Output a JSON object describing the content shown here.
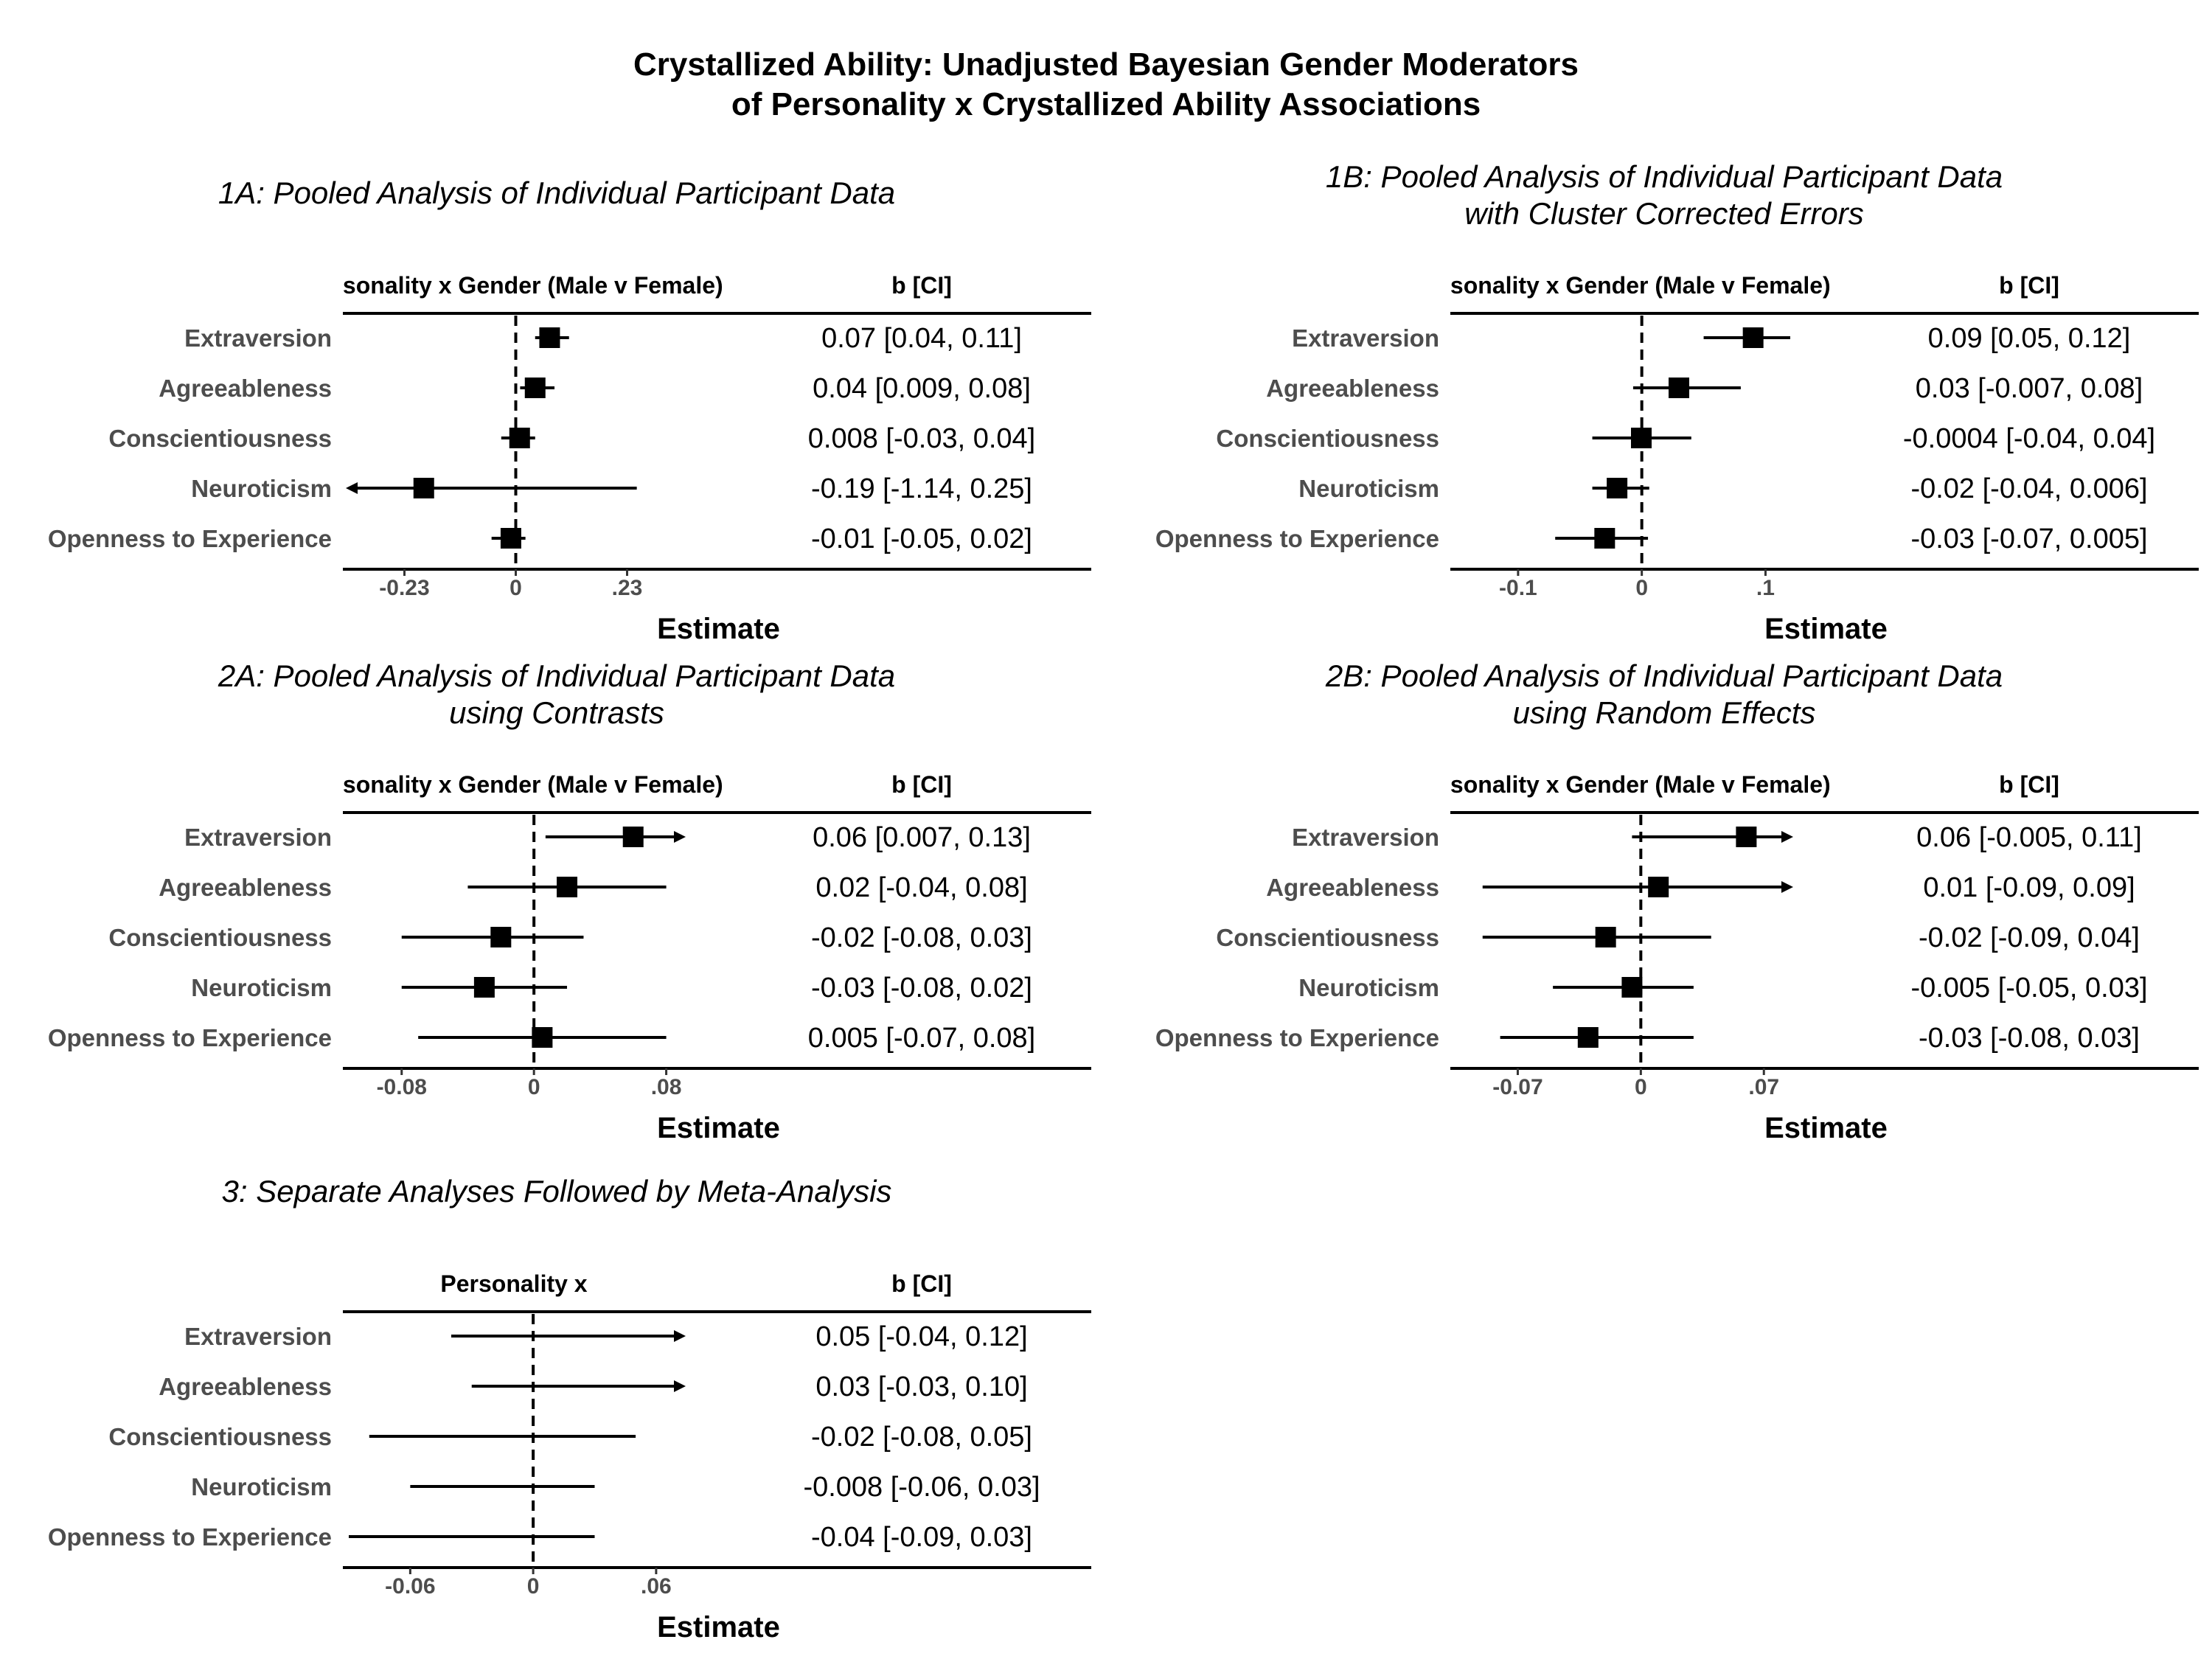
{
  "title_line1": "Crystallized Ability: Unadjusted Bayesian Gender Moderators",
  "title_line2": "of Personality x Crystallized Ability Associations",
  "colors": {
    "marker": "#000000",
    "row_label": "#4d4d4d",
    "line": "#000000"
  },
  "chart_data": [
    {
      "type": "forest",
      "title": [
        "1A: Pooled Analysis of Individual Participant Data"
      ],
      "column_header": "Personality x Gender (Male v Female)",
      "ci_header": "b [CI]",
      "xlabel": "Estimate",
      "xlim": [
        -0.345,
        0.345
      ],
      "ticks": [
        {
          "v": -0.23,
          "label": "-0.23"
        },
        {
          "v": 0,
          "label": "0"
        },
        {
          "v": 0.23,
          "label": ".23"
        }
      ],
      "rows": [
        {
          "label": "Extraversion",
          "estimate": 0.07,
          "lower": 0.04,
          "upper": 0.11,
          "ci_text": "0.07 [0.04, 0.11]",
          "marker": true
        },
        {
          "label": "Agreeableness",
          "estimate": 0.04,
          "lower": 0.009,
          "upper": 0.08,
          "ci_text": "0.04 [0.009, 0.08]",
          "marker": true
        },
        {
          "label": "Conscientiousness",
          "estimate": 0.008,
          "lower": -0.03,
          "upper": 0.04,
          "ci_text": "0.008 [-0.03, 0.04]",
          "marker": true
        },
        {
          "label": "Neuroticism",
          "estimate": -0.19,
          "lower": -1.14,
          "upper": 0.25,
          "ci_text": "-0.19 [-1.14, 0.25]",
          "marker": true
        },
        {
          "label": "Openness to Experience",
          "estimate": -0.01,
          "lower": -0.05,
          "upper": 0.02,
          "ci_text": "-0.01 [-0.05, 0.02]",
          "marker": true
        }
      ]
    },
    {
      "type": "forest",
      "title": [
        "1B: Pooled Analysis of Individual Participant Data",
        "with Cluster Corrected Errors"
      ],
      "column_header": "Personality x Gender (Male v Female)",
      "ci_header": "b [CI]",
      "xlabel": "Estimate",
      "xlim": [
        -0.15,
        0.12
      ],
      "ticks": [
        {
          "v": -0.1,
          "label": "-0.1"
        },
        {
          "v": 0,
          "label": "0"
        },
        {
          "v": 0.1,
          "label": ".1"
        }
      ],
      "rows": [
        {
          "label": "Extraversion",
          "estimate": 0.09,
          "lower": 0.05,
          "upper": 0.12,
          "ci_text": "0.09 [0.05, 0.12]",
          "marker": true
        },
        {
          "label": "Agreeableness",
          "estimate": 0.03,
          "lower": -0.007,
          "upper": 0.08,
          "ci_text": "0.03 [-0.007, 0.08]",
          "marker": true
        },
        {
          "label": "Conscientiousness",
          "estimate": -0.0004,
          "lower": -0.04,
          "upper": 0.04,
          "ci_text": "-0.0004 [-0.04, 0.04]",
          "marker": true
        },
        {
          "label": "Neuroticism",
          "estimate": -0.02,
          "lower": -0.04,
          "upper": 0.006,
          "ci_text": "-0.02 [-0.04, 0.006]",
          "marker": true
        },
        {
          "label": "Openness to Experience",
          "estimate": -0.03,
          "lower": -0.07,
          "upper": 0.005,
          "ci_text": "-0.03 [-0.07, 0.005]",
          "marker": true
        }
      ]
    },
    {
      "type": "forest",
      "title": [
        "2A: Pooled Analysis of Individual Participant Data",
        "using Contrasts"
      ],
      "column_header": "Personality x Gender (Male v Female)",
      "ci_header": "b [CI]",
      "xlabel": "Estimate",
      "xlim": [
        -0.112,
        0.09
      ],
      "ticks": [
        {
          "v": -0.08,
          "label": "-0.08"
        },
        {
          "v": 0,
          "label": "0"
        },
        {
          "v": 0.08,
          "label": ".08"
        }
      ],
      "rows": [
        {
          "label": "Extraversion",
          "estimate": 0.06,
          "lower": 0.007,
          "upper": 0.13,
          "ci_text": "0.06 [0.007, 0.13]",
          "marker": true
        },
        {
          "label": "Agreeableness",
          "estimate": 0.02,
          "lower": -0.04,
          "upper": 0.08,
          "ci_text": "0.02 [-0.04, 0.08]",
          "marker": true
        },
        {
          "label": "Conscientiousness",
          "estimate": -0.02,
          "lower": -0.08,
          "upper": 0.03,
          "ci_text": "-0.02 [-0.08, 0.03]",
          "marker": true
        },
        {
          "label": "Neuroticism",
          "estimate": -0.03,
          "lower": -0.08,
          "upper": 0.02,
          "ci_text": "-0.03 [-0.08, 0.02]",
          "marker": true
        },
        {
          "label": "Openness to Experience",
          "estimate": 0.005,
          "lower": -0.07,
          "upper": 0.08,
          "ci_text": "0.005 [-0.07, 0.08]",
          "marker": true
        }
      ]
    },
    {
      "type": "forest",
      "title": [
        "2B: Pooled Analysis of Individual Participant Data",
        "using Random Effects"
      ],
      "column_header": "Personality x Gender (Male v Female)",
      "ci_header": "b [CI]",
      "xlabel": "Estimate",
      "xlim": [
        -0.105,
        0.085
      ],
      "ticks": [
        {
          "v": -0.07,
          "label": "-0.07"
        },
        {
          "v": 0,
          "label": "0"
        },
        {
          "v": 0.07,
          "label": ".07"
        }
      ],
      "rows": [
        {
          "label": "Extraversion",
          "estimate": 0.06,
          "lower": -0.005,
          "upper": 0.11,
          "ci_text": "0.06 [-0.005, 0.11]",
          "marker": true
        },
        {
          "label": "Agreeableness",
          "estimate": 0.01,
          "lower": -0.09,
          "upper": 0.09,
          "ci_text": "0.01 [-0.09, 0.09]",
          "marker": true
        },
        {
          "label": "Conscientiousness",
          "estimate": -0.02,
          "lower": -0.09,
          "upper": 0.04,
          "ci_text": "-0.02 [-0.09, 0.04]",
          "marker": true
        },
        {
          "label": "Neuroticism",
          "estimate": -0.005,
          "lower": -0.05,
          "upper": 0.03,
          "ci_text": "-0.005 [-0.05, 0.03]",
          "marker": true
        },
        {
          "label": "Openness to Experience",
          "estimate": -0.03,
          "lower": -0.08,
          "upper": 0.03,
          "ci_text": "-0.03 [-0.08, 0.03]",
          "marker": true
        }
      ]
    },
    {
      "type": "forest",
      "title": [
        "3: Separate Analyses Followed by Meta-Analysis"
      ],
      "column_header": "Personality x",
      "ci_header": "b [CI]",
      "xlabel": "Estimate",
      "xlim": [
        -0.09,
        0.073
      ],
      "ticks": [
        {
          "v": -0.06,
          "label": "-0.06"
        },
        {
          "v": 0,
          "label": "0"
        },
        {
          "v": 0.06,
          "label": ".06"
        }
      ],
      "rows": [
        {
          "label": "Extraversion",
          "estimate": 0.05,
          "lower": -0.04,
          "upper": 0.12,
          "ci_text": "0.05 [-0.04, 0.12]",
          "marker": false
        },
        {
          "label": "Agreeableness",
          "estimate": 0.03,
          "lower": -0.03,
          "upper": 0.1,
          "ci_text": "0.03 [-0.03, 0.10]",
          "marker": false
        },
        {
          "label": "Conscientiousness",
          "estimate": -0.02,
          "lower": -0.08,
          "upper": 0.05,
          "ci_text": "-0.02 [-0.08, 0.05]",
          "marker": false
        },
        {
          "label": "Neuroticism",
          "estimate": -0.008,
          "lower": -0.06,
          "upper": 0.03,
          "ci_text": "-0.008 [-0.06, 0.03]",
          "marker": false
        },
        {
          "label": "Openness to Experience",
          "estimate": -0.04,
          "lower": -0.09,
          "upper": 0.03,
          "ci_text": "-0.04 [-0.09, 0.03]",
          "marker": false
        }
      ]
    }
  ]
}
